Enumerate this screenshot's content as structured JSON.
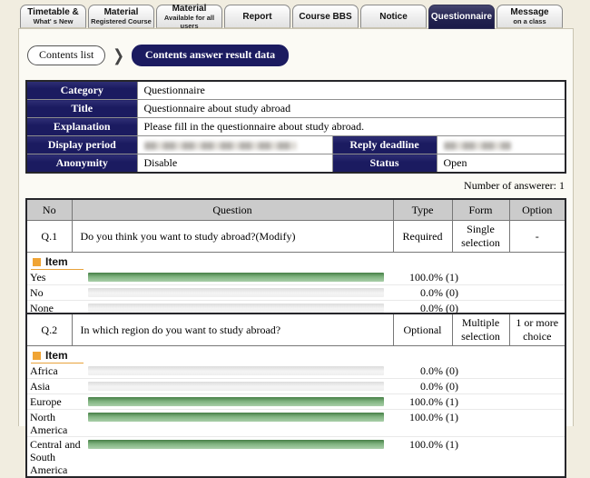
{
  "tabs": [
    {
      "line1": "Timetable &",
      "line2": "What' s New",
      "selected": false
    },
    {
      "line1": "Material",
      "line2": "Registered Course",
      "selected": false
    },
    {
      "line1": "Material",
      "line2": "Available for all users",
      "selected": false
    },
    {
      "line1": "Report",
      "line2": "",
      "selected": false
    },
    {
      "line1": "Course BBS",
      "line2": "",
      "selected": false
    },
    {
      "line1": "Notice",
      "line2": "",
      "selected": false
    },
    {
      "line1": "Questionnaire",
      "line2": "",
      "selected": true
    },
    {
      "line1": "Message",
      "line2": "on a class",
      "selected": false
    }
  ],
  "breadcrumb": {
    "contents_list": "Contents list",
    "separator": "❯",
    "current": "Contents answer result data"
  },
  "info": {
    "rows": [
      {
        "label": "Category",
        "value": "Questionnaire"
      },
      {
        "label": "Title",
        "value": "Questionnaire about study abroad"
      },
      {
        "label": "Explanation",
        "value": "Please fill in the questionnaire about study abroad."
      },
      {
        "label": "Display period",
        "value_redacted": true,
        "label2": "Reply deadline",
        "value2_redacted": true
      },
      {
        "label": "Anonymity",
        "value": "Disable",
        "label2": "Status",
        "value2": "Open"
      }
    ]
  },
  "answer_count_label": "Number of answerer: 1",
  "result_table": {
    "headers": {
      "no": "No",
      "question": "Question",
      "type": "Type",
      "form": "Form",
      "option": "Option"
    }
  },
  "questions": [
    {
      "no": "Q.1",
      "question": "Do you think you want to study abroad?(Modify)",
      "type": "Required",
      "form": "Single selection",
      "option": "-",
      "item_label": "Item",
      "items": [
        {
          "label": "Yes",
          "percent": 100,
          "display": "100.0% (1)"
        },
        {
          "label": "No",
          "percent": 0,
          "display": "0.0% (0)"
        },
        {
          "label": "None",
          "percent": 0,
          "display": "0.0% (0)"
        }
      ]
    },
    {
      "no": "Q.2",
      "question": "In which region do you want to study abroad?",
      "type": "Optional",
      "form": "Multiple selection",
      "option": "1 or more choice",
      "item_label": "Item",
      "items": [
        {
          "label": "Africa",
          "percent": 0,
          "display": "0.0% (0)"
        },
        {
          "label": "Asia",
          "percent": 0,
          "display": "0.0% (0)"
        },
        {
          "label": "Europe",
          "percent": 100,
          "display": "100.0% (1)"
        },
        {
          "label": "North America",
          "percent": 100,
          "display": "100.0% (1)"
        },
        {
          "label": "Central and South America",
          "percent": 100,
          "display": "100.0% (1)"
        }
      ]
    }
  ],
  "colors": {
    "navy": "#1b1b60",
    "header_gray": "#cbcbcb",
    "bar_green": "#7fb27f",
    "accent_orange": "#f0a434",
    "page_background": "#f1ede0"
  },
  "icons": {
    "item_bullet": "orange-square",
    "breadcrumb_arrow": "chevron-right"
  }
}
